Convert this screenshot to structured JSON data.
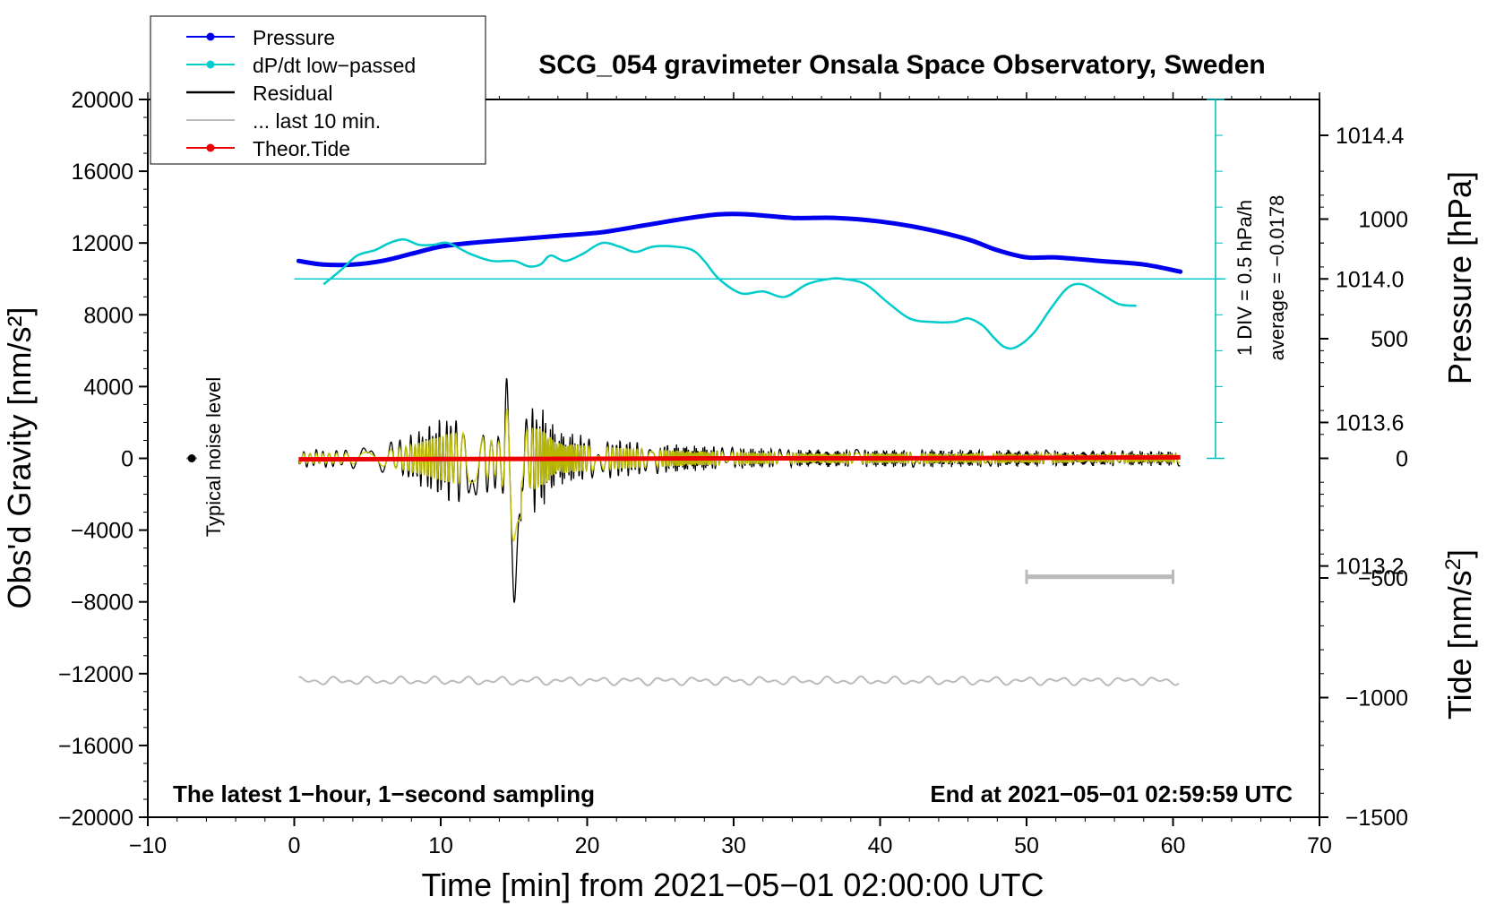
{
  "chart_data": {
    "type": "line",
    "title": "SCG_054 gravimeter Onsala Space Observatory, Sweden",
    "xlabel": "Time [min] from 2021−05−01 02:00:00 UTC",
    "ylabel_left": "Obs'd Gravity [nm/s²]",
    "ylabel_right_pressure": "Pressure [hPa]",
    "ylabel_right_tide_prefix": "Tide [nm/s",
    "ylabel_right_tide_sup": "2",
    "ylabel_right_tide_suffix": "]",
    "xlim": [
      -10,
      70
    ],
    "ylim_gravity": [
      -20000,
      20000
    ],
    "ylim_pressure": [
      1012.5,
      1014.5
    ],
    "ylim_tide": [
      -1500,
      1500
    ],
    "x_ticks": [
      "−10",
      "0",
      "10",
      "20",
      "30",
      "40",
      "50",
      "60",
      "70"
    ],
    "y_ticks_left": [
      "20000",
      "16000",
      "12000",
      "8000",
      "4000",
      "0",
      "−4000",
      "−8000",
      "−12000",
      "−16000",
      "−20000"
    ],
    "y_ticks_pressure": [
      "1014.4",
      "1014.0",
      "1013.6",
      "1013.2"
    ],
    "y_ticks_tide": [
      "1000",
      "500",
      "0",
      "−500",
      "−1000",
      "−1500"
    ],
    "legend": {
      "position": "top-left",
      "entries": [
        {
          "label": "Pressure",
          "color": "#0000ee",
          "marker": true
        },
        {
          "label": "dP/dt low−passed",
          "color": "#00cccc",
          "marker": true
        },
        {
          "label": "Residual",
          "color": "#000000",
          "marker": false
        },
        {
          "label": "... last 10 min.",
          "color": "#bbbbbb",
          "marker": false
        },
        {
          "label": "Theor.Tide",
          "color": "#ee0000",
          "marker": true
        }
      ]
    },
    "annotations": {
      "bottom_left": "The latest 1−hour, 1−second sampling",
      "bottom_right": "End at 2021−05−01 02:59:59 UTC",
      "noise_label": "Typical noise level",
      "scale_div": "1 DIV = 0.5 hPa/h",
      "scale_avg": "average = −0.0178"
    },
    "series": [
      {
        "name": "Pressure",
        "axis": "pressure",
        "color": "#0000ee",
        "x": [
          0.3,
          2,
          4,
          6,
          8,
          10,
          12,
          15,
          18,
          21,
          24,
          27,
          29,
          31,
          34,
          37,
          40,
          43,
          46,
          48,
          50,
          52,
          55,
          58,
          60.5
        ],
        "y": [
          1014.05,
          1014.04,
          1014.04,
          1014.05,
          1014.07,
          1014.09,
          1014.1,
          1014.11,
          1014.12,
          1014.13,
          1014.15,
          1014.17,
          1014.18,
          1014.18,
          1014.17,
          1014.17,
          1014.16,
          1014.14,
          1014.11,
          1014.08,
          1014.06,
          1014.06,
          1014.05,
          1014.04,
          1014.02
        ]
      },
      {
        "name": "dP/dt low−passed",
        "axis": "gravity",
        "color": "#00cccc",
        "x": [
          2,
          3.2,
          4.3,
          5.5,
          6.5,
          7.5,
          8.5,
          9.5,
          10.5,
          12,
          13.5,
          15,
          16,
          16.8,
          17.5,
          18.5,
          19.7,
          21,
          22.2,
          23.3,
          24.5,
          26,
          27.2,
          28,
          29,
          30.5,
          32,
          33.5,
          35,
          36.5,
          37.5,
          39,
          40.5,
          42,
          43.5,
          45,
          46,
          47,
          47.8,
          48.5,
          49.3,
          50.5,
          51.7,
          52.8,
          53.8,
          55,
          56.3,
          57.5
        ],
        "y": [
          9700,
          10500,
          11300,
          11600,
          12000,
          12200,
          11900,
          11900,
          12000,
          11400,
          11000,
          11000,
          10700,
          10800,
          11300,
          11000,
          11400,
          12000,
          11800,
          11500,
          11800,
          11800,
          11600,
          11000,
          10000,
          9200,
          9300,
          9000,
          9700,
          10000,
          10000,
          9700,
          8700,
          7800,
          7600,
          7600,
          7800,
          7400,
          6700,
          6200,
          6200,
          7000,
          8400,
          9500,
          9700,
          9200,
          8600,
          8500
        ]
      },
      {
        "name": "Residual",
        "axis": "gravity",
        "color": "#000000",
        "x_range": [
          0.3,
          60.5
        ],
        "description_free": true
      },
      {
        "name": "... last 10 min.",
        "axis": "gravity",
        "color": "#bbbbbb",
        "x_range": [
          50,
          60
        ]
      },
      {
        "name": "Theor.Tide",
        "axis": "tide",
        "color": "#ee0000",
        "x": [
          0.3,
          10,
          20,
          30,
          40,
          50,
          60.5
        ],
        "y": [
          -4,
          -3,
          -2,
          0,
          0,
          2,
          4
        ]
      }
    ],
    "average_line_gravity": 10000,
    "noise_level_gravity": 0,
    "noise_x": -7
  }
}
